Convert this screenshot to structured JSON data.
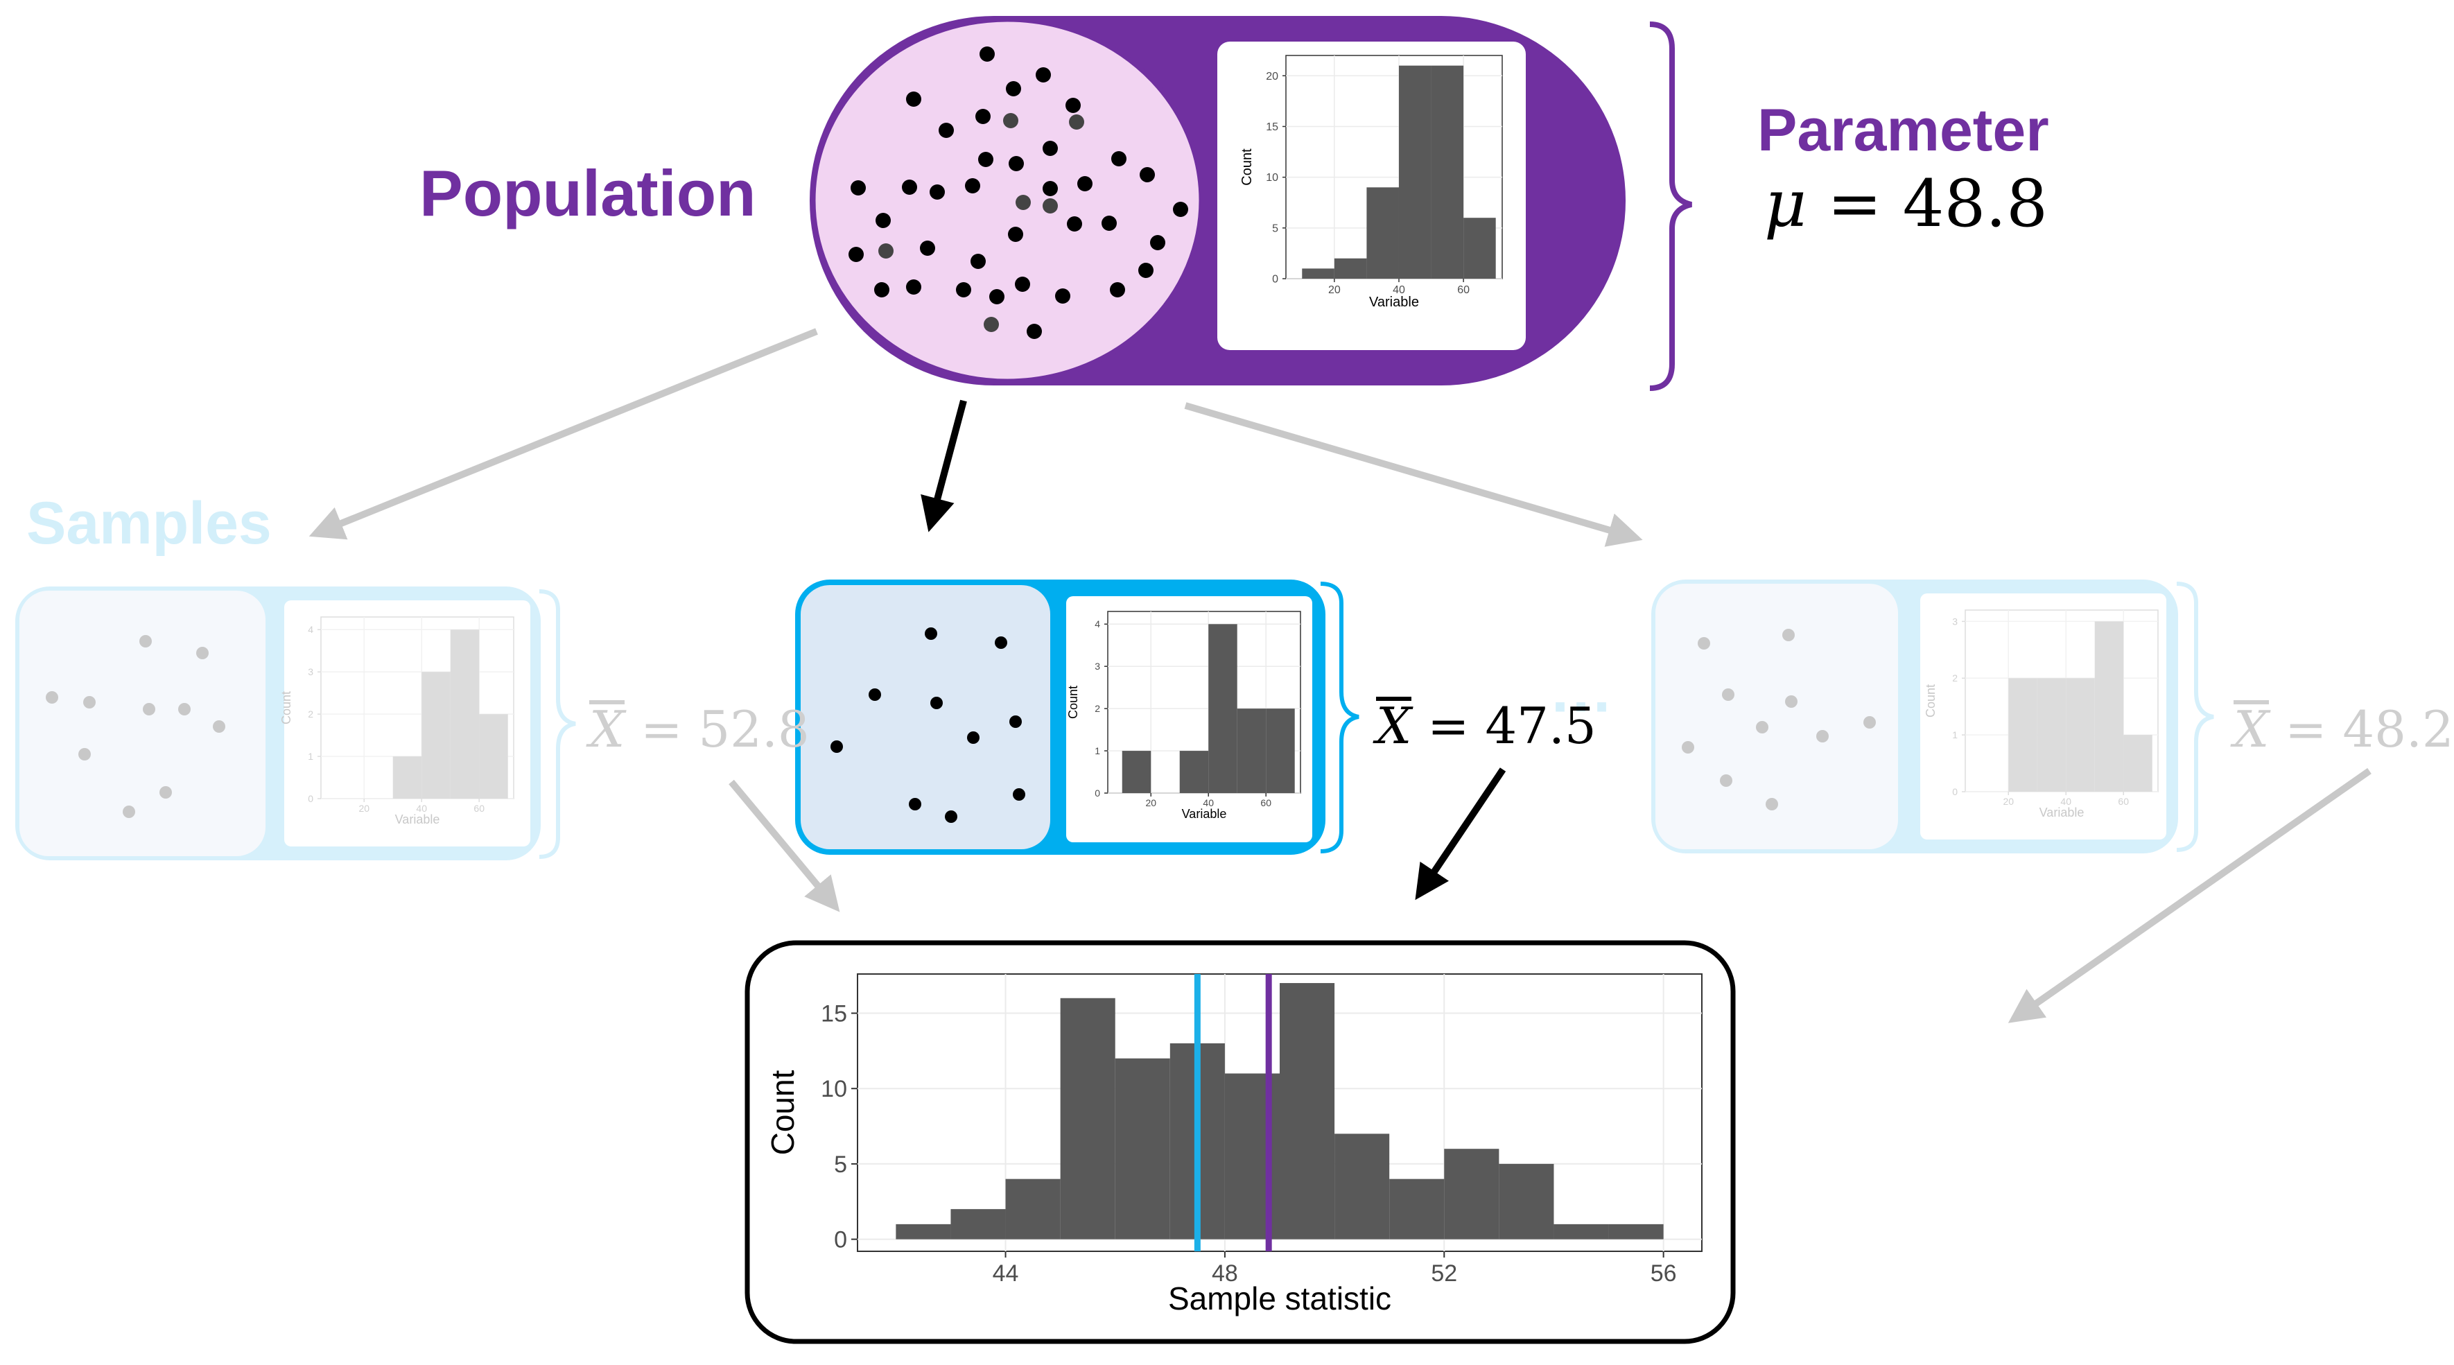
{
  "population": {
    "label": "Population",
    "inset_chart": {
      "type": "bar",
      "xlabel": "Variable",
      "ylabel": "Count",
      "x_ticks": [
        "20",
        "40",
        "60"
      ],
      "y_ticks": [
        "0",
        "5",
        "10",
        "15",
        "20"
      ],
      "bins": [
        [
          10,
          20,
          1
        ],
        [
          20,
          30,
          2
        ],
        [
          30,
          40,
          9
        ],
        [
          40,
          50,
          21
        ],
        [
          50,
          60,
          21
        ],
        [
          60,
          70,
          6
        ]
      ],
      "xlim": [
        5,
        72
      ],
      "ylim": [
        0,
        22
      ]
    }
  },
  "parameter": {
    "label": "Parameter",
    "symbol": "μ",
    "equals": "=",
    "value": "48.8"
  },
  "samples": {
    "label": "Samples",
    "items": [
      {
        "xbar_symbol": "X",
        "equals": "=",
        "xbar_value": "52.8",
        "inset_chart": {
          "xlabel": "Variable",
          "ylabel": "Count",
          "x_ticks": [
            "20",
            "40",
            "60"
          ],
          "y_ticks": [
            "0",
            "1",
            "2",
            "3",
            "4"
          ],
          "bins": [
            [
              30,
              40,
              1
            ],
            [
              40,
              50,
              3
            ],
            [
              50,
              60,
              4
            ],
            [
              60,
              70,
              2
            ]
          ],
          "xlim": [
            5,
            72
          ],
          "ylim": [
            0,
            4.3
          ]
        }
      },
      {
        "xbar_symbol": "X",
        "equals": "=",
        "xbar_value": "47.5",
        "inset_chart": {
          "xlabel": "Variable",
          "ylabel": "Count",
          "x_ticks": [
            "20",
            "40",
            "60"
          ],
          "y_ticks": [
            "0",
            "1",
            "2",
            "3",
            "4"
          ],
          "bins": [
            [
              10,
              20,
              1
            ],
            [
              30,
              40,
              1
            ],
            [
              40,
              50,
              4
            ],
            [
              50,
              60,
              2
            ],
            [
              60,
              70,
              2
            ]
          ],
          "xlim": [
            5,
            72
          ],
          "ylim": [
            0,
            4.3
          ]
        }
      },
      {
        "xbar_symbol": "X",
        "equals": "=",
        "xbar_value": "48.2",
        "inset_chart": {
          "xlabel": "Variable",
          "ylabel": "Count",
          "x_ticks": [
            "20",
            "40",
            "60"
          ],
          "y_ticks": [
            "0",
            "1",
            "2",
            "3"
          ],
          "bins": [
            [
              20,
              30,
              2
            ],
            [
              30,
              40,
              2
            ],
            [
              40,
              50,
              2
            ],
            [
              50,
              60,
              3
            ],
            [
              60,
              70,
              1
            ]
          ],
          "xlim": [
            5,
            72
          ],
          "ylim": [
            0,
            3.2
          ]
        }
      }
    ],
    "ellipsis": "···"
  },
  "chart_data": {
    "type": "bar",
    "xlabel": "Sample statistic",
    "ylabel": "Count",
    "x_ticks": [
      "44",
      "48",
      "52",
      "56"
    ],
    "y_ticks": [
      "0",
      "5",
      "10",
      "15"
    ],
    "xlim": [
      41.3,
      56.7
    ],
    "ylim": [
      -0.8,
      17.6
    ],
    "bin_edges": [
      42,
      43,
      44,
      45,
      46,
      47,
      48,
      49,
      50,
      51,
      52,
      53,
      54,
      55,
      56
    ],
    "counts": [
      1,
      2,
      4,
      16,
      12,
      13,
      11,
      17,
      7,
      4,
      6,
      5,
      1,
      1
    ],
    "reference_lines": [
      {
        "value": 47.5,
        "color": "#1CB0E8"
      },
      {
        "value": 48.8,
        "color": "#7030A0"
      }
    ]
  },
  "colors": {
    "purple": "#7030A0",
    "lavender": "#F2D4F2",
    "blue": "#00AEEF",
    "light_blue": "#DCE8F5",
    "faded_blue": "#D6F0FB",
    "bar_dark": "#595959",
    "bar_faded": "#DCDCDC"
  }
}
